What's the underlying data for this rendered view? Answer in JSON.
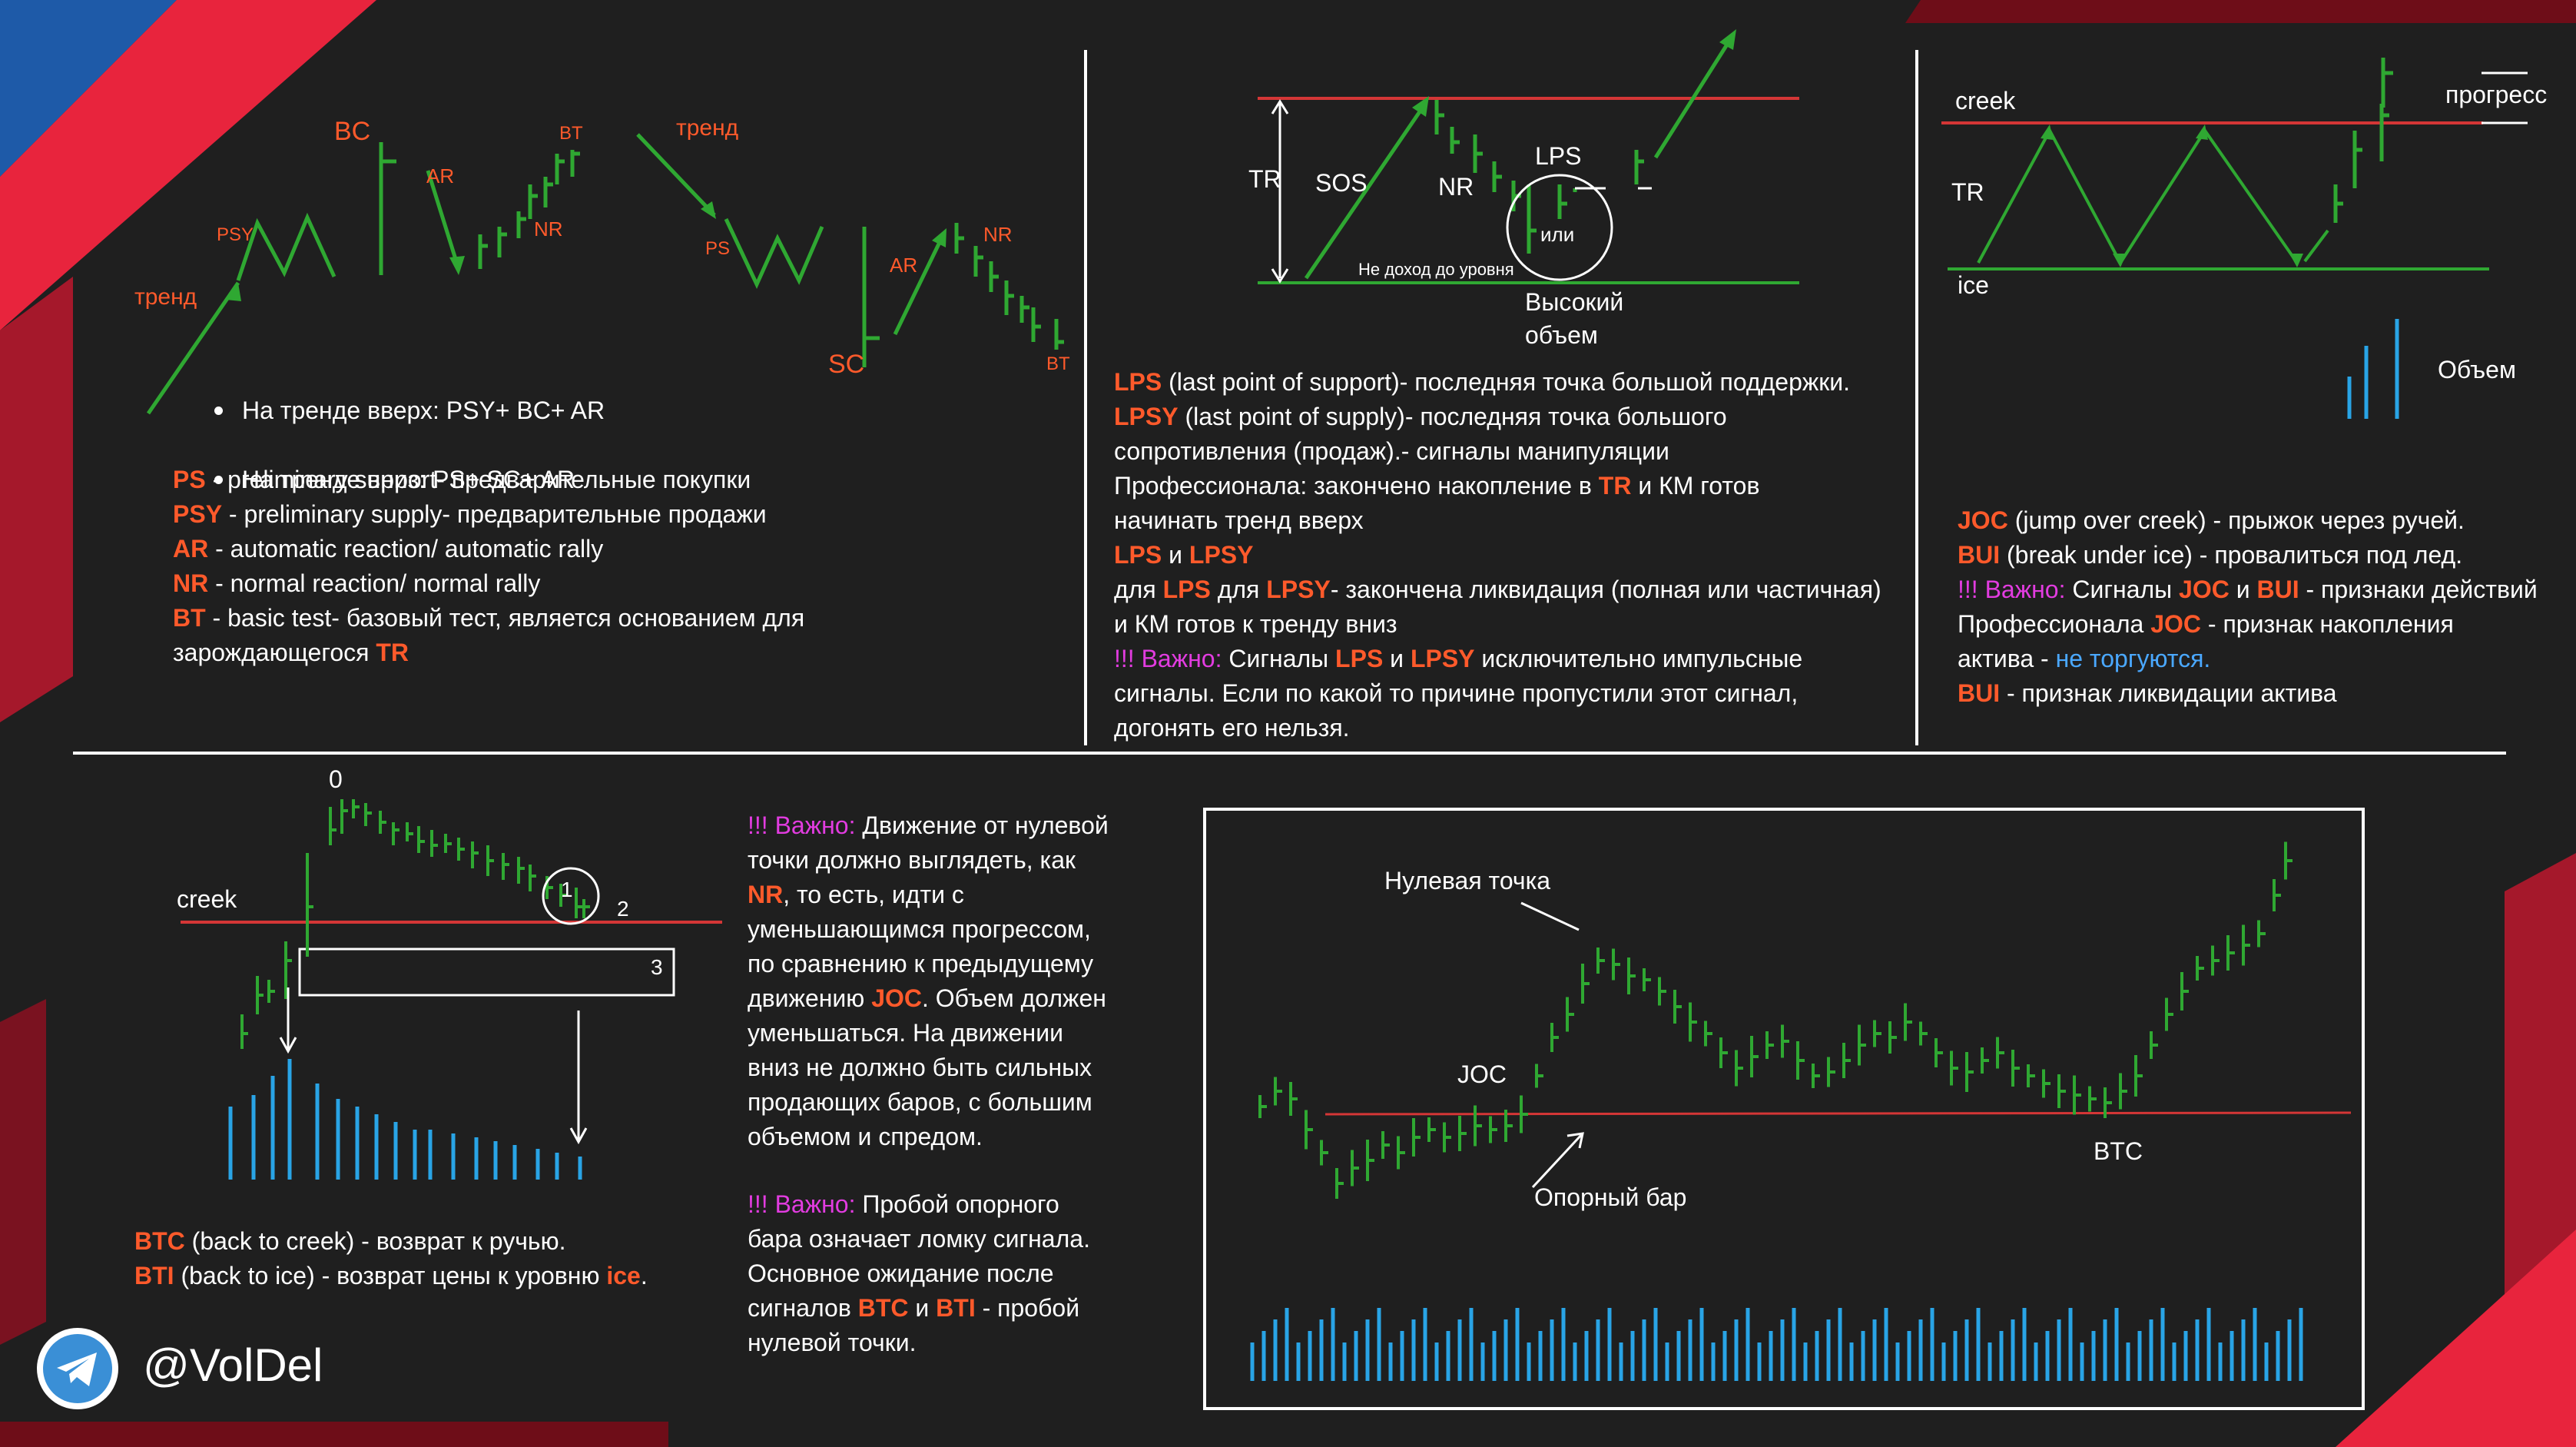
{
  "colors": {
    "bg": "#1f1f1f",
    "bar": "#2fa832",
    "red_line": "#d43636",
    "volume": "#29a4e6",
    "accent_red": "#e8243d",
    "accent_blue": "#1e5aa8",
    "label_orange": "#ff5a2b",
    "important": "#e23ce0",
    "link_blue": "#4aa8ff"
  },
  "panel1": {
    "labels": {
      "trend": "тренд",
      "psy": "PSY",
      "bc": "BC",
      "ar": "AR",
      "nr": "NR",
      "bt": "BT",
      "trend2": "тренд",
      "ps": "PS",
      "sc": "SC",
      "ar2": "AR",
      "nr2": "NR",
      "bt2": "BT"
    },
    "bullets": [
      "На тренде вверх: PSY+ BC+ AR",
      "На тренде вниз: PS+ SC+ AR"
    ],
    "defs": [
      {
        "term": "PS",
        "text": " - preliminary support- предварительные покупки"
      },
      {
        "term": "PSY",
        "text": " - preliminary supply- предварительные продажи"
      },
      {
        "term": "AR",
        "text": " - automatic reaction/ automatic rally"
      },
      {
        "term": "NR",
        "text": " - normal reaction/ normal rally"
      },
      {
        "term": "BT",
        "text": " - basic test- базовый тест, является основанием для"
      }
    ],
    "def_tail": "зарождающегося ",
    "def_tail_term": "TR"
  },
  "panel2": {
    "labels": {
      "tr": "TR",
      "sos": "SOS",
      "nr": "NR",
      "lps": "LPS",
      "ili": "или",
      "no_reach": "Не доход до уровня",
      "high_vol_1": "Высокий",
      "high_vol_2": "объем"
    },
    "p1_term": "LPS",
    "p1_text": " (last point of support)- последняя точка большой поддержки.",
    "p2_term": "LPSY",
    "p2_text": " (last point of supply)- последняя точка большого",
    "p2_l2": "сопротивления (продаж).- сигналы манипуляции",
    "p2_l3a": "Профессионала: закончено накопление в ",
    "p2_l3_term": "TR",
    "p2_l3b": " и КМ готов",
    "p2_l4": "начинать тренд вверх",
    "p3_t1": "LPS",
    "p3_and": " и ",
    "p3_t2": "LPSY",
    "p4_a": "для ",
    "p4_t1": "LPS",
    "p4_b": " для ",
    "p4_t2": "LPSY",
    "p4_c": "- закончена ликвидация (полная или частичная)",
    "p4_l2": "и КМ готов к тренду вниз",
    "p5_imp": "!!! Важно:",
    "p5_a": " Сигналы ",
    "p5_t1": "LPS",
    "p5_and": " и ",
    "p5_t2": "LPSY",
    "p5_b": " исключительно импульсные",
    "p5_l2": "сигналы. Если по какой то причине пропустили этот сигнал,",
    "p5_l3": "догонять его нельзя."
  },
  "panel3": {
    "labels": {
      "creek": "creek",
      "tr": "TR",
      "ice": "ice",
      "progress": "прогресс",
      "volume": "Объем"
    },
    "l1_term": "JOC",
    "l1_text": " (jump over creek) - прыжок через ручей.",
    "l2_term": "BUI",
    "l2_text": " (break under ice) - провалиться под лед.",
    "l3_imp": "!!! Важно:",
    "l3_a": " Сигналы ",
    "l3_t1": "JOC",
    "l3_and": " и ",
    "l3_t2": "BUI",
    "l3_b": " - признаки действий",
    "l4_a": "Профессионала ",
    "l4_term": "JOC",
    "l4_b": " - признак накопления",
    "l5_a": "актива - ",
    "l5_blue": "не торгуются.",
    "l6_term": "BUI",
    "l6_text": " - признак ликвидации актива"
  },
  "panel4": {
    "labels": {
      "zero": "0",
      "creek": "creek",
      "one": "1",
      "two": "2",
      "three": "3"
    },
    "btc_term": "BTC",
    "btc_text": " (back to creek) - возврат к ручью.",
    "bti_term": "BTI",
    "bti_text": " (back to ice) - возврат цены к уровню ",
    "bti_ice": "ice",
    "bti_end": "."
  },
  "panel5": {
    "imp1": "!!! Важно:",
    "l1": " Движение от нулевой",
    "l2": "точки должно выглядеть, как",
    "l3_term": "NR",
    "l3": ", то есть, идти с",
    "l4": "уменьшающимся прогрессом,",
    "l5": "по сравнению к предыдущему",
    "l6a": "движению ",
    "l6_term": "JOC",
    "l6b": ". Объем должен",
    "l7": "уменьшаться. На движении",
    "l8": "вниз не должно быть сильных",
    "l9": "продающих баров, с большим",
    "l10": "объемом и спредом.",
    "imp2": "!!! Важно:",
    "m1": " Пробой опорного",
    "m2": "бара означает ломку сигнала.",
    "m3": "Основное ожидание после",
    "m4a": "сигналов ",
    "m4_t1": "BTC",
    "m4_and": " и ",
    "m4_t2": "BTI",
    "m4b": " - пробой",
    "m5": "нулевой точки."
  },
  "panel6": {
    "labels": {
      "zero_point": "Нулевая точка",
      "joc": "JOC",
      "support_bar": "Опорный бар",
      "btc": "BTC"
    }
  },
  "footer": {
    "handle": "@VolDel"
  }
}
